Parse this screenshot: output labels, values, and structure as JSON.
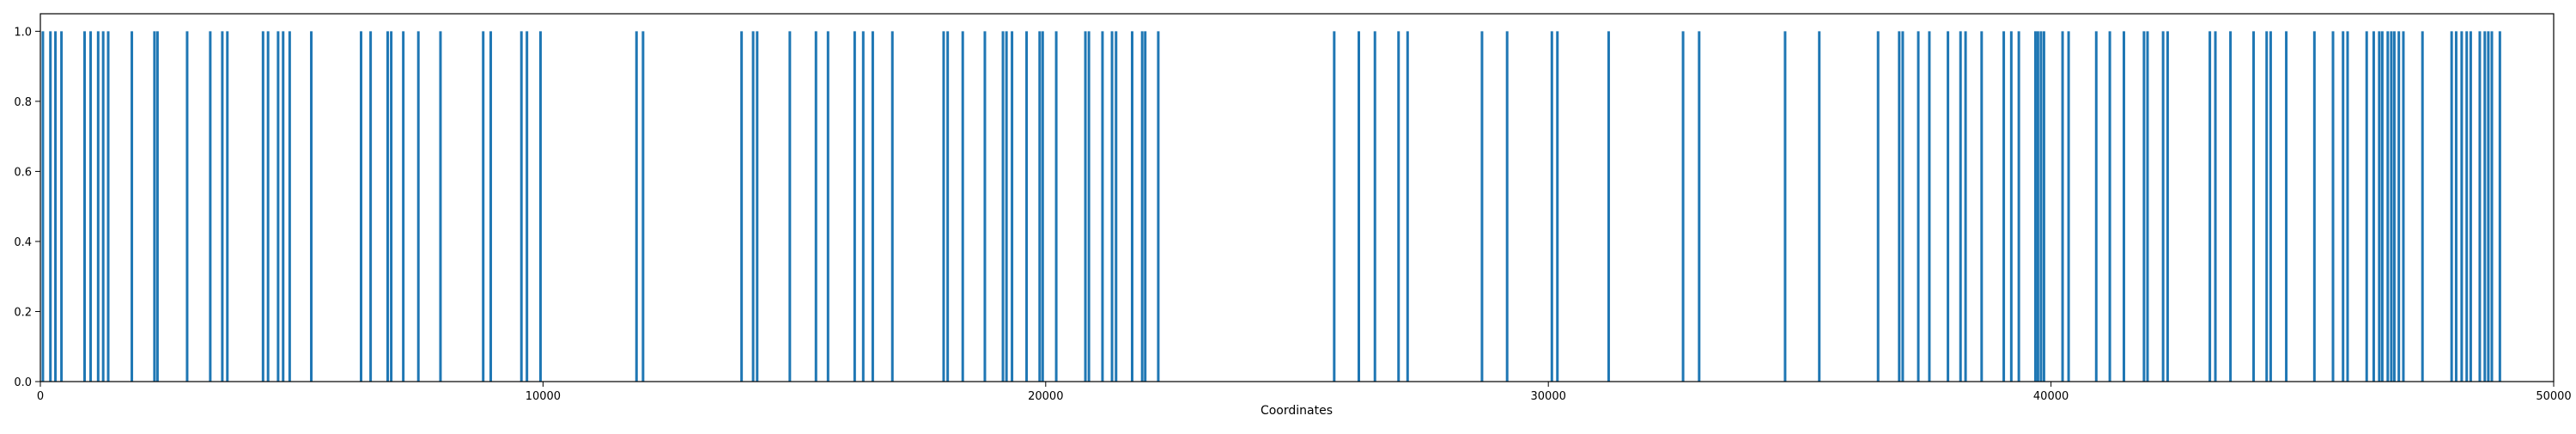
{
  "chart_data": {
    "type": "bar",
    "xlabel": "Coordinates",
    "ylabel": "",
    "title": "",
    "xlim": [
      0,
      50000
    ],
    "ylim": [
      0,
      1.05
    ],
    "xticks": [
      0,
      10000,
      20000,
      30000,
      40000,
      50000
    ],
    "xtick_labels": [
      "0",
      "10000",
      "20000",
      "30000",
      "40000",
      "50000"
    ],
    "yticks": [
      0.0,
      0.2,
      0.4,
      0.6,
      0.8,
      1.0
    ],
    "ytick_labels": [
      "0.0",
      "0.2",
      "0.4",
      "0.6",
      "0.8",
      "1.0"
    ],
    "grid": false,
    "bar_color": "#1f77b4",
    "bar_value": 1.0,
    "x": [
      50,
      200,
      300,
      420,
      880,
      1000,
      1150,
      1250,
      1350,
      1820,
      2270,
      2330,
      2920,
      3380,
      3620,
      3720,
      4430,
      4530,
      4730,
      4830,
      4960,
      5390,
      6380,
      6570,
      6910,
      6980,
      7220,
      7520,
      7960,
      8810,
      8960,
      9570,
      9680,
      9950,
      11860,
      11990,
      13950,
      14180,
      14260,
      14910,
      15430,
      15670,
      16200,
      16370,
      16560,
      16950,
      17970,
      18050,
      18350,
      18790,
      19150,
      19220,
      19330,
      19620,
      19880,
      19940,
      20210,
      20790,
      20860,
      21130,
      21320,
      21400,
      21720,
      21920,
      21980,
      22240,
      25740,
      26230,
      26550,
      27020,
      27200,
      28680,
      29180,
      30070,
      30180,
      31200,
      32680,
      33000,
      34710,
      35390,
      36560,
      36980,
      37050,
      37360,
      37580,
      37950,
      38200,
      38300,
      38620,
      39060,
      39210,
      39360,
      39690,
      39740,
      39800,
      39860,
      40230,
      40350,
      40900,
      41170,
      41450,
      41850,
      41920,
      42230,
      42320,
      43160,
      43270,
      43570,
      44030,
      44290,
      44370,
      44680,
      45240,
      45610,
      45810,
      45900,
      46280,
      46420,
      46530,
      46590,
      46700,
      46770,
      46830,
      46920,
      47010,
      47390,
      47970,
      48060,
      48170,
      48270,
      48350,
      48530,
      48630,
      48700,
      48770,
      48930
    ]
  }
}
